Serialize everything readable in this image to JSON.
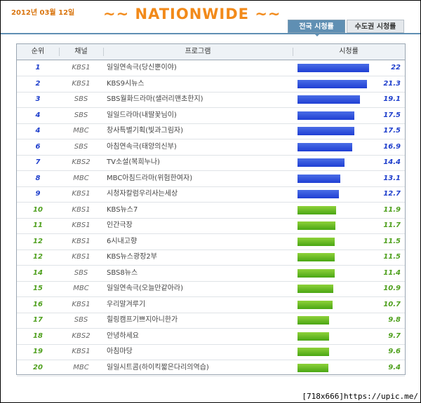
{
  "header": {
    "date": "2012년 03월 12일",
    "banner": "~~ NATIONWIDE ~~",
    "tabs": [
      {
        "label": "전국 시청률",
        "active": true
      },
      {
        "label": "수도권 시청률",
        "active": false
      }
    ]
  },
  "table": {
    "columns": [
      "순위",
      "채널",
      "프로그램",
      "시청률"
    ]
  },
  "colors": {
    "top_bar": "#1f3fd4",
    "lower_bar": "#4aa614"
  },
  "chart_data": {
    "type": "bar",
    "orientation": "horizontal",
    "xlim": [
      0,
      22
    ],
    "rows": [
      {
        "rank": "1",
        "channel": "KBS1",
        "program": "일일연속극(당신뿐이야)",
        "value": 22,
        "label": "22",
        "color": "blue"
      },
      {
        "rank": "2",
        "channel": "KBS1",
        "program": "KBS9시뉴스",
        "value": 21.3,
        "label": "21.3",
        "color": "blue"
      },
      {
        "rank": "3",
        "channel": "SBS",
        "program": "SBS월화드라마(샐러리맨초한지)",
        "value": 19.1,
        "label": "19.1",
        "color": "blue"
      },
      {
        "rank": "4",
        "channel": "SBS",
        "program": "일일드라마(내딸꽃님이)",
        "value": 17.5,
        "label": "17.5",
        "color": "blue"
      },
      {
        "rank": "4",
        "channel": "MBC",
        "program": "창사특별기획(빛과그림자)",
        "value": 17.5,
        "label": "17.5",
        "color": "blue"
      },
      {
        "rank": "6",
        "channel": "SBS",
        "program": "아침연속극(태양의신부)",
        "value": 16.9,
        "label": "16.9",
        "color": "blue"
      },
      {
        "rank": "7",
        "channel": "KBS2",
        "program": "TV소설(복희누나)",
        "value": 14.4,
        "label": "14.4",
        "color": "blue"
      },
      {
        "rank": "8",
        "channel": "MBC",
        "program": "MBC아침드라마(위험한여자)",
        "value": 13.1,
        "label": "13.1",
        "color": "blue"
      },
      {
        "rank": "9",
        "channel": "KBS1",
        "program": "시청자칼럼우리사는세상",
        "value": 12.7,
        "label": "12.7",
        "color": "blue"
      },
      {
        "rank": "10",
        "channel": "KBS1",
        "program": "KBS뉴스7",
        "value": 11.9,
        "label": "11.9",
        "color": "green"
      },
      {
        "rank": "11",
        "channel": "KBS1",
        "program": "인간극장",
        "value": 11.7,
        "label": "11.7",
        "color": "green"
      },
      {
        "rank": "12",
        "channel": "KBS1",
        "program": "6시내고향",
        "value": 11.5,
        "label": "11.5",
        "color": "green"
      },
      {
        "rank": "12",
        "channel": "KBS1",
        "program": "KBS뉴스광장2부",
        "value": 11.5,
        "label": "11.5",
        "color": "green"
      },
      {
        "rank": "14",
        "channel": "SBS",
        "program": "SBS8뉴스",
        "value": 11.4,
        "label": "11.4",
        "color": "green"
      },
      {
        "rank": "15",
        "channel": "MBC",
        "program": "일일연속극(오늘만같아라)",
        "value": 10.9,
        "label": "10.9",
        "color": "green"
      },
      {
        "rank": "16",
        "channel": "KBS1",
        "program": "우리말겨루기",
        "value": 10.7,
        "label": "10.7",
        "color": "green"
      },
      {
        "rank": "17",
        "channel": "SBS",
        "program": "힐링캠프기쁘지아니한가",
        "value": 9.8,
        "label": "9.8",
        "color": "green"
      },
      {
        "rank": "18",
        "channel": "KBS2",
        "program": "안녕하세요",
        "value": 9.7,
        "label": "9.7",
        "color": "green"
      },
      {
        "rank": "19",
        "channel": "KBS1",
        "program": "아침마당",
        "value": 9.6,
        "label": "9.6",
        "color": "green"
      },
      {
        "rank": "20",
        "channel": "MBC",
        "program": "일일시트콤(하이킥짧은다리의역습)",
        "value": 9.4,
        "label": "9.4",
        "color": "green"
      }
    ]
  },
  "watermark": "[718x666]https://upic.me/"
}
